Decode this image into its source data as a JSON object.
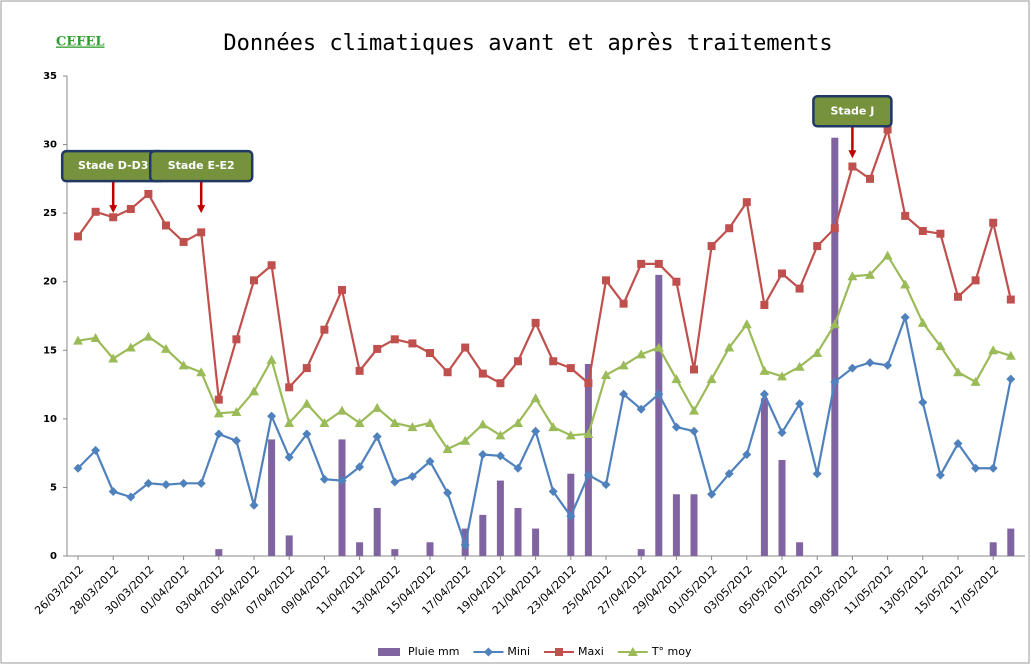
{
  "chart_data": {
    "type": "line",
    "logo": "CEFEL",
    "title": "Données climatiques avant et après traitements",
    "categories": [
      "26/03/2012",
      null,
      "28/03/2012",
      null,
      "30/03/2012",
      null,
      "01/04/2012",
      null,
      "03/04/2012",
      null,
      "05/04/2012",
      null,
      "07/04/2012",
      null,
      "09/04/2012",
      null,
      "11/04/2012",
      null,
      "13/04/2012",
      null,
      "15/04/2012",
      null,
      "17/04/2012",
      null,
      "19/04/2012",
      null,
      "21/04/2012",
      null,
      "23/04/2012",
      null,
      "25/04/2012",
      null,
      "27/04/2012",
      null,
      "29/04/2012",
      null,
      "01/05/2012",
      null,
      "03/05/2012",
      null,
      "05/05/2012",
      null,
      "07/05/2012",
      null,
      "09/05/2012",
      null,
      "11/05/2012",
      null,
      "13/05/2012",
      null,
      "15/05/2012",
      null,
      "17/05/2012",
      null
    ],
    "series": [
      {
        "name": "Pluie mm",
        "type": "bar",
        "color": "#8064a2",
        "values": [
          0,
          0,
          0,
          0,
          0,
          0,
          0,
          0,
          0.5,
          0,
          0,
          8.5,
          1.5,
          0,
          0,
          8.5,
          1.0,
          3.5,
          0.5,
          0,
          1.0,
          0,
          2.0,
          3.0,
          5.5,
          3.5,
          2.0,
          0,
          6.0,
          14.0,
          0,
          0,
          0.5,
          20.5,
          4.5,
          4.5,
          0,
          0,
          0,
          11.5,
          7.0,
          1.0,
          0,
          30.5,
          0,
          0,
          0,
          0,
          0,
          0,
          0,
          0,
          1.0,
          2.0
        ]
      },
      {
        "name": "Mini",
        "type": "line",
        "marker": "diamond",
        "color": "#4f81bd",
        "values": [
          6.4,
          7.7,
          4.7,
          4.3,
          5.3,
          5.2,
          5.3,
          5.3,
          8.9,
          8.4,
          3.7,
          10.2,
          7.2,
          8.9,
          5.6,
          5.5,
          6.5,
          8.7,
          5.4,
          5.8,
          6.9,
          4.6,
          0.8,
          7.4,
          7.3,
          6.4,
          9.1,
          4.7,
          2.9,
          5.9,
          5.2,
          11.8,
          10.7,
          11.8,
          9.4,
          9.1,
          4.5,
          6.0,
          7.4,
          11.8,
          9.0,
          11.1,
          6.0,
          12.7,
          13.7,
          14.1,
          13.9,
          17.4,
          11.2,
          5.9,
          8.2,
          6.4,
          6.4,
          12.9
        ]
      },
      {
        "name": "Maxi",
        "type": "line",
        "marker": "square",
        "color": "#c0504d",
        "values": [
          23.3,
          25.1,
          24.7,
          25.3,
          26.4,
          24.1,
          22.9,
          23.6,
          11.4,
          15.8,
          20.1,
          21.2,
          12.3,
          13.7,
          16.5,
          19.4,
          13.5,
          15.1,
          15.8,
          15.5,
          14.8,
          13.4,
          15.2,
          13.3,
          12.6,
          14.2,
          17.0,
          14.2,
          13.7,
          12.6,
          20.1,
          18.4,
          21.3,
          21.3,
          20.0,
          13.6,
          22.6,
          23.9,
          25.8,
          18.3,
          20.6,
          19.5,
          22.6,
          23.9,
          28.4,
          27.5,
          31.1,
          24.8,
          23.7,
          23.5,
          18.9,
          20.1,
          24.3,
          18.7
        ]
      },
      {
        "name": "T° moy",
        "type": "line",
        "marker": "triangle",
        "color": "#9bbb59",
        "values": [
          15.7,
          15.9,
          14.4,
          15.2,
          16.0,
          15.1,
          13.9,
          13.4,
          10.4,
          10.5,
          12.0,
          14.3,
          9.7,
          11.1,
          9.7,
          10.6,
          9.7,
          10.8,
          9.7,
          9.4,
          9.7,
          7.8,
          8.4,
          9.6,
          8.8,
          9.7,
          11.5,
          9.4,
          8.8,
          8.9,
          13.2,
          13.9,
          14.7,
          15.2,
          12.9,
          10.6,
          12.9,
          15.2,
          16.9,
          13.5,
          13.1,
          13.8,
          14.8,
          16.9,
          20.4,
          20.5,
          21.9,
          19.8,
          17.0,
          15.3,
          13.4,
          12.7,
          15.0,
          14.6
        ]
      }
    ],
    "ylim": [
      0,
      35
    ],
    "yticks": [
      0,
      5,
      10,
      15,
      20,
      25,
      30,
      35
    ],
    "grid": false,
    "legend": "bottom",
    "annotations": [
      {
        "text": "Stade D-D3",
        "index": 2,
        "y": 25
      },
      {
        "text": "Stade E-E2",
        "index": 7,
        "y": 25
      },
      {
        "text": "Stade J",
        "index": 44,
        "y": 29
      }
    ]
  }
}
